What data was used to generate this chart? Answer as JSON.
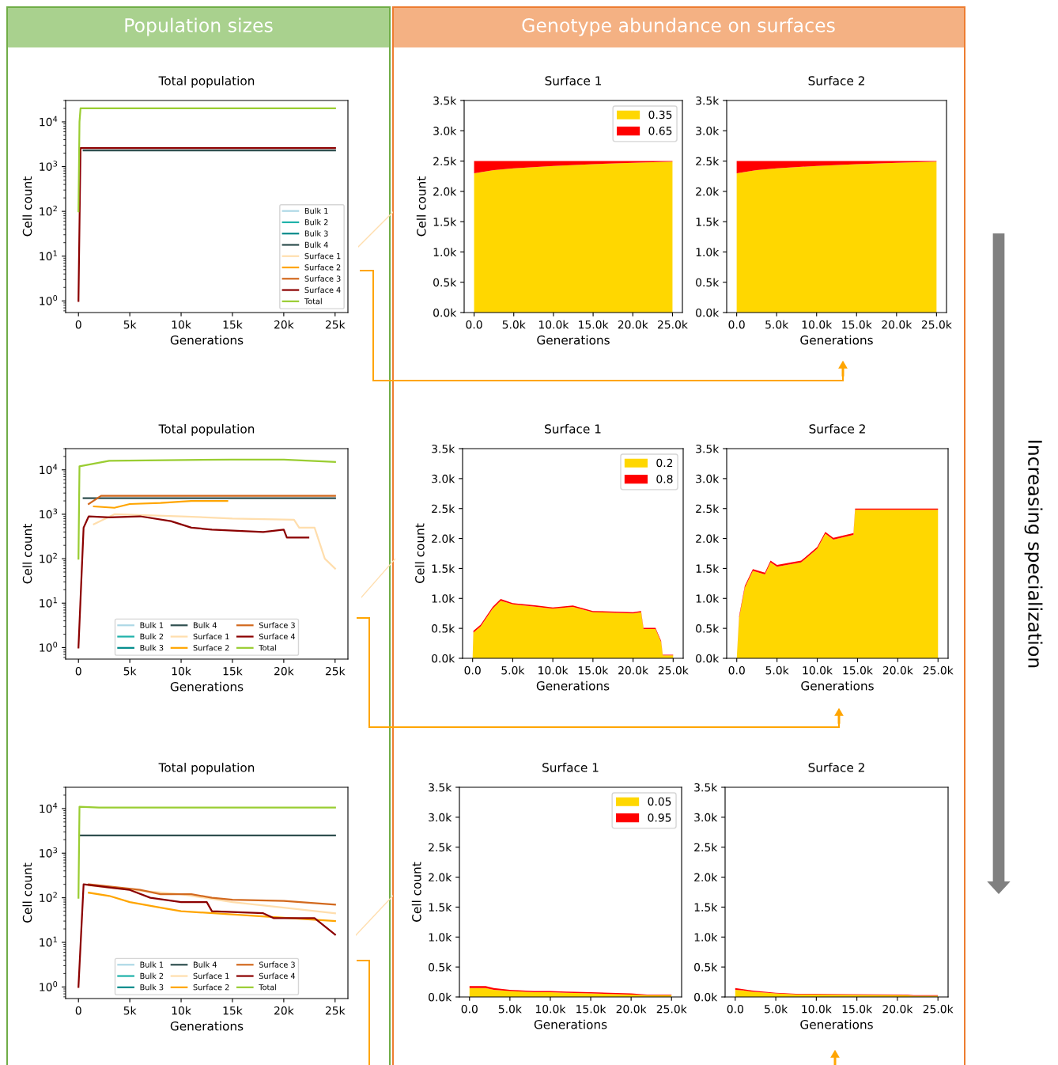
{
  "chart_data": [
    {
      "type": "line",
      "title": "Total population",
      "xlabel": "Generations",
      "ylabel": "Cell count",
      "log": "y",
      "legend": "bottom right",
      "annotations": [
        "Population sizes"
      ],
      "xlim": [
        -1250,
        26250
      ],
      "xticks": [
        0,
        {
          "value": 5000,
          "label": "5k"
        },
        {
          "value": 10000,
          "label": "10k"
        },
        {
          "value": 15000,
          "label": "15k"
        },
        {
          "value": 20000,
          "label": "20k"
        },
        {
          "value": 25000,
          "label": "25k"
        }
      ],
      "ylim": [
        0.55,
        30000
      ],
      "yticks": [
        {
          "value": 1,
          "label": "10$^{0}$"
        },
        {
          "value": 10,
          "label": "10$^{1}$"
        },
        {
          "value": 100,
          "label": "10$^{2}$"
        },
        {
          "value": 1000,
          "label": "10$^{3}$"
        },
        {
          "value": 10000,
          "label": "10$^{4}$"
        }
      ],
      "series": [
        {
          "name": "Bulk 1",
          "color": "#add8e6"
        },
        {
          "name": "Bulk 2",
          "color": "#20b2aa"
        },
        {
          "name": "Bulk 3",
          "color": "#008b8b"
        },
        {
          "name": "Bulk 4",
          "color": "#2f4f4f",
          "x": [
            500,
            25000
          ],
          "values": [
            2300,
            2300
          ]
        },
        {
          "name": "Surface 1",
          "color": "#ffdead"
        },
        {
          "name": "Surface 2",
          "color": "#ffa500"
        },
        {
          "name": "Surface 3",
          "color": "#d2691e"
        },
        {
          "name": "Surface 4",
          "color": "#8b0000",
          "x": [
            0,
            200,
            25000
          ],
          "values": [
            1,
            2600,
            2600
          ]
        },
        {
          "name": "Total",
          "color": "#9acd32",
          "x": [
            0,
            100,
            200,
            25000
          ],
          "values": [
            100,
            10000,
            20000,
            20000
          ]
        }
      ]
    },
    {
      "type": "area",
      "stacked": true,
      "title": "Surface 1",
      "xlabel": "Generations",
      "ylabel": "Cell count",
      "legend": "top right",
      "annotations": [
        "Genotype abundance on surfaces"
      ],
      "xlim": [
        -1250,
        26250
      ],
      "xticks": [
        {
          "value": 0,
          "label": "0.0"
        },
        {
          "value": 5000,
          "label": "5.0k"
        },
        {
          "value": 10000,
          "label": "10.0k"
        },
        {
          "value": 15000,
          "label": "15.0k"
        },
        {
          "value": 20000,
          "label": "20.0k"
        },
        {
          "value": 25000,
          "label": "25.0k"
        }
      ],
      "ylim": [
        0,
        3500
      ],
      "yticks": [
        {
          "value": 0,
          "label": "0.0k"
        },
        {
          "value": 500,
          "label": "0.5k"
        },
        {
          "value": 1000,
          "label": "1.0k"
        },
        {
          "value": 1500,
          "label": "1.5k"
        },
        {
          "value": 2000,
          "label": "2.0k"
        },
        {
          "value": 2500,
          "label": "2.5k"
        },
        {
          "value": 3000,
          "label": "3.0k"
        },
        {
          "value": 3500,
          "label": "3.5k"
        }
      ],
      "x": [
        0,
        2500,
        5000,
        10000,
        15000,
        20000,
        25000
      ],
      "series": [
        {
          "name": "0.35",
          "color": "#ffd700",
          "values": [
            2300,
            2350,
            2380,
            2420,
            2450,
            2470,
            2490
          ]
        },
        {
          "name": "0.65",
          "color": "#ff0000",
          "values": [
            200,
            150,
            120,
            80,
            50,
            30,
            10
          ]
        }
      ]
    },
    {
      "type": "area",
      "stacked": true,
      "title": "Surface 2",
      "xlabel": "Generations",
      "annotations": [
        "Increasing specialization"
      ],
      "xlim": [
        -1250,
        26250
      ],
      "xticks": [
        {
          "value": 0,
          "label": "0.0"
        },
        {
          "value": 5000,
          "label": "5.0k"
        },
        {
          "value": 10000,
          "label": "10.0k"
        },
        {
          "value": 15000,
          "label": "15.0k"
        },
        {
          "value": 20000,
          "label": "20.0k"
        },
        {
          "value": 25000,
          "label": "25.0k"
        }
      ],
      "ylim": [
        0,
        3500
      ],
      "yticks": [
        {
          "value": 0,
          "label": "0.0k"
        },
        {
          "value": 500,
          "label": "0.5k"
        },
        {
          "value": 1000,
          "label": "1.0k"
        },
        {
          "value": 1500,
          "label": "1.5k"
        },
        {
          "value": 2000,
          "label": "2.0k"
        },
        {
          "value": 2500,
          "label": "2.5k"
        },
        {
          "value": 3000,
          "label": "3.0k"
        },
        {
          "value": 3500,
          "label": "3.5k"
        }
      ],
      "x": [
        0,
        2500,
        5000,
        10000,
        15000,
        20000,
        25000
      ],
      "series": [
        {
          "color": "#ffd700",
          "values": [
            2300,
            2350,
            2380,
            2420,
            2450,
            2470,
            2490
          ]
        },
        {
          "color": "#ff0000",
          "values": [
            200,
            150,
            120,
            80,
            50,
            30,
            10
          ]
        }
      ]
    },
    {
      "type": "line",
      "title": "Total population",
      "xlabel": "Generations",
      "ylabel": "Cell count",
      "log": "y",
      "legend": "bottom",
      "xlim": [
        -1250,
        26250
      ],
      "xticks": [
        0,
        {
          "value": 5000,
          "label": "5k"
        },
        {
          "value": 10000,
          "label": "10k"
        },
        {
          "value": 15000,
          "label": "15k"
        },
        {
          "value": 20000,
          "label": "20k"
        },
        {
          "value": 25000,
          "label": "25k"
        }
      ],
      "ylim": [
        0.55,
        30000
      ],
      "yticks": [
        {
          "value": 1,
          "label": "10$^{0}$"
        },
        {
          "value": 10,
          "label": "10$^{1}$"
        },
        {
          "value": 100,
          "label": "10$^{2}$"
        },
        {
          "value": 1000,
          "label": "10$^{3}$"
        },
        {
          "value": 10000,
          "label": "10$^{4}$"
        }
      ],
      "series": [
        {
          "name": "Bulk 1",
          "color": "#add8e6"
        },
        {
          "name": "Bulk 2",
          "color": "#20b2aa"
        },
        {
          "name": "Bulk 3",
          "color": "#008b8b"
        },
        {
          "name": "Bulk 4",
          "color": "#2f4f4f",
          "x": [
            500,
            25000
          ],
          "values": [
            2300,
            2300
          ]
        },
        {
          "name": "Surface 1",
          "color": "#ffdead",
          "x": [
            1500,
            3500,
            10000,
            15000,
            21000,
            21500,
            23000,
            24000,
            25000
          ],
          "values": [
            600,
            1000,
            900,
            800,
            750,
            500,
            500,
            100,
            60
          ]
        },
        {
          "name": "Surface 2",
          "color": "#ffa500",
          "x": [
            1500,
            3500,
            5000,
            8000,
            11000,
            14500
          ],
          "values": [
            1500,
            1400,
            1700,
            1800,
            2000,
            2000
          ]
        },
        {
          "name": "Surface 3",
          "color": "#d2691e",
          "x": [
            1000,
            2200,
            25000
          ],
          "values": [
            1700,
            2600,
            2600
          ]
        },
        {
          "name": "Surface 4",
          "color": "#8b0000",
          "x": [
            0,
            500,
            1000,
            3000,
            6000,
            9000,
            11000,
            13000,
            18000,
            20000,
            20300,
            22400
          ],
          "values": [
            1,
            500,
            900,
            850,
            900,
            700,
            500,
            450,
            400,
            450,
            300,
            300
          ]
        },
        {
          "name": "Total",
          "color": "#9acd32",
          "x": [
            0,
            100,
            3000,
            15000,
            20000,
            25000
          ],
          "values": [
            100,
            12000,
            16000,
            17000,
            17000,
            15000
          ]
        }
      ]
    },
    {
      "type": "area",
      "stacked": true,
      "title": "Surface 1",
      "xlabel": "Generations",
      "ylabel": "Cell count",
      "legend": "top right",
      "xlim": [
        -1250,
        26250
      ],
      "xticks": [
        {
          "value": 0,
          "label": "0.0"
        },
        {
          "value": 5000,
          "label": "5.0k"
        },
        {
          "value": 10000,
          "label": "10.0k"
        },
        {
          "value": 15000,
          "label": "15.0k"
        },
        {
          "value": 20000,
          "label": "20.0k"
        },
        {
          "value": 25000,
          "label": "25.0k"
        }
      ],
      "ylim": [
        0,
        3500
      ],
      "yticks": [
        {
          "value": 0,
          "label": "0.0k"
        },
        {
          "value": 500,
          "label": "0.5k"
        },
        {
          "value": 1000,
          "label": "1.0k"
        },
        {
          "value": 1500,
          "label": "1.5k"
        },
        {
          "value": 2000,
          "label": "2.0k"
        },
        {
          "value": 2500,
          "label": "2.5k"
        },
        {
          "value": 3000,
          "label": "3.0k"
        },
        {
          "value": 3500,
          "label": "3.5k"
        }
      ],
      "x": [
        0,
        100,
        1000,
        2500,
        3500,
        5000,
        8000,
        10000,
        12500,
        15000,
        20000,
        21000,
        21300,
        22800,
        23500,
        23700,
        25000
      ],
      "series": [
        {
          "name": "0.2",
          "color": "#ffd700",
          "values": [
            0,
            430,
            530,
            830,
            960,
            900,
            860,
            830,
            860,
            770,
            750,
            770,
            490,
            490,
            270,
            50,
            50
          ]
        },
        {
          "name": "0.8",
          "color": "#ff0000",
          "values": [
            0,
            30,
            30,
            30,
            30,
            20,
            20,
            20,
            20,
            20,
            20,
            20,
            20,
            20,
            20,
            10,
            10
          ]
        }
      ]
    },
    {
      "type": "area",
      "stacked": true,
      "title": "Surface 2",
      "xlabel": "Generations",
      "xlim": [
        -1250,
        26250
      ],
      "xticks": [
        {
          "value": 0,
          "label": "0.0"
        },
        {
          "value": 5000,
          "label": "5.0k"
        },
        {
          "value": 10000,
          "label": "10.0k"
        },
        {
          "value": 15000,
          "label": "15.0k"
        },
        {
          "value": 20000,
          "label": "20.0k"
        },
        {
          "value": 25000,
          "label": "25.0k"
        }
      ],
      "ylim": [
        0,
        3500
      ],
      "yticks": [
        {
          "value": 0,
          "label": "0.0k"
        },
        {
          "value": 500,
          "label": "0.5k"
        },
        {
          "value": 1000,
          "label": "1.0k"
        },
        {
          "value": 1500,
          "label": "1.5k"
        },
        {
          "value": 2000,
          "label": "2.0k"
        },
        {
          "value": 2500,
          "label": "2.5k"
        },
        {
          "value": 3000,
          "label": "3.0k"
        },
        {
          "value": 3500,
          "label": "3.5k"
        }
      ],
      "x": [
        0,
        300,
        1000,
        2000,
        3500,
        4200,
        5000,
        8000,
        10000,
        11000,
        12000,
        14500,
        14700,
        25000
      ],
      "series": [
        {
          "color": "#ffd700",
          "values": [
            0,
            680,
            1180,
            1460,
            1400,
            1600,
            1530,
            1600,
            1830,
            2080,
            1980,
            2060,
            2480,
            2480
          ]
        },
        {
          "color": "#ff0000",
          "values": [
            0,
            30,
            30,
            30,
            30,
            30,
            30,
            30,
            30,
            30,
            30,
            30,
            20,
            20
          ]
        }
      ]
    },
    {
      "type": "line",
      "title": "Total population",
      "xlabel": "Generations",
      "ylabel": "Cell count",
      "log": "y",
      "legend": "bottom",
      "xlim": [
        -1250,
        26250
      ],
      "xticks": [
        0,
        {
          "value": 5000,
          "label": "5k"
        },
        {
          "value": 10000,
          "label": "10k"
        },
        {
          "value": 15000,
          "label": "15k"
        },
        {
          "value": 20000,
          "label": "20k"
        },
        {
          "value": 25000,
          "label": "25k"
        }
      ],
      "ylim": [
        0.55,
        30000
      ],
      "yticks": [
        {
          "value": 1,
          "label": "10$^{0}$"
        },
        {
          "value": 10,
          "label": "10$^{1}$"
        },
        {
          "value": 100,
          "label": "10$^{2}$"
        },
        {
          "value": 1000,
          "label": "10$^{3}$"
        },
        {
          "value": 10000,
          "label": "10$^{4}$"
        }
      ],
      "series": [
        {
          "name": "Bulk 1",
          "color": "#add8e6"
        },
        {
          "name": "Bulk 2",
          "color": "#20b2aa"
        },
        {
          "name": "Bulk 3",
          "color": "#008b8b"
        },
        {
          "name": "Bulk 4",
          "color": "#2f4f4f",
          "x": [
            200,
            25000
          ],
          "values": [
            2500,
            2500
          ]
        },
        {
          "name": "Surface 1",
          "color": "#ffdead",
          "x": [
            1000,
            5000,
            10000,
            15000,
            20000,
            25000
          ],
          "values": [
            190,
            150,
            120,
            80,
            60,
            45
          ]
        },
        {
          "name": "Surface 2",
          "color": "#ffa500",
          "x": [
            1000,
            3000,
            5000,
            8000,
            10000,
            25000
          ],
          "values": [
            130,
            110,
            80,
            60,
            50,
            30
          ]
        },
        {
          "name": "Surface 3",
          "color": "#d2691e",
          "x": [
            1000,
            3000,
            6000,
            8000,
            11000,
            13000,
            15000,
            20000,
            25000
          ],
          "values": [
            200,
            180,
            150,
            120,
            120,
            100,
            90,
            85,
            70
          ]
        },
        {
          "name": "Surface 4",
          "color": "#8b0000",
          "x": [
            0,
            500,
            3000,
            5000,
            7000,
            10000,
            12500,
            13000,
            18000,
            19000,
            23000,
            25000
          ],
          "values": [
            1,
            200,
            170,
            150,
            100,
            80,
            80,
            50,
            45,
            35,
            35,
            15
          ]
        },
        {
          "name": "Total",
          "color": "#9acd32",
          "x": [
            0,
            100,
            2000,
            25000
          ],
          "values": [
            100,
            11000,
            10500,
            10500
          ]
        }
      ]
    },
    {
      "type": "area",
      "stacked": true,
      "title": "Surface 1",
      "xlabel": "Generations",
      "ylabel": "Cell count",
      "legend": "top right",
      "xlim": [
        -1250,
        26250
      ],
      "xticks": [
        {
          "value": 0,
          "label": "0.0"
        },
        {
          "value": 5000,
          "label": "5.0k"
        },
        {
          "value": 10000,
          "label": "10.0k"
        },
        {
          "value": 15000,
          "label": "15.0k"
        },
        {
          "value": 20000,
          "label": "20.0k"
        },
        {
          "value": 25000,
          "label": "25.0k"
        }
      ],
      "ylim": [
        0,
        3500
      ],
      "yticks": [
        {
          "value": 0,
          "label": "0.0k"
        },
        {
          "value": 500,
          "label": "0.5k"
        },
        {
          "value": 1000,
          "label": "1.0k"
        },
        {
          "value": 1500,
          "label": "1.5k"
        },
        {
          "value": 2000,
          "label": "2.0k"
        },
        {
          "value": 2500,
          "label": "2.5k"
        },
        {
          "value": 3000,
          "label": "3.0k"
        },
        {
          "value": 3500,
          "label": "3.5k"
        }
      ],
      "x": [
        0,
        2000,
        3000,
        5000,
        8000,
        10000,
        12000,
        15000,
        20000,
        22000,
        25000
      ],
      "series": [
        {
          "name": "0.05",
          "color": "#ffd700",
          "values": [
            150,
            150,
            120,
            100,
            80,
            80,
            70,
            60,
            40,
            30,
            30
          ]
        },
        {
          "name": "0.95",
          "color": "#ff0000",
          "values": [
            30,
            30,
            30,
            20,
            20,
            20,
            20,
            20,
            20,
            10,
            10
          ]
        }
      ]
    },
    {
      "type": "area",
      "stacked": true,
      "title": "Surface 2",
      "xlabel": "Generations",
      "xlim": [
        -1250,
        26250
      ],
      "xticks": [
        {
          "value": 0,
          "label": "0.0"
        },
        {
          "value": 5000,
          "label": "5.0k"
        },
        {
          "value": 10000,
          "label": "10.0k"
        },
        {
          "value": 15000,
          "label": "15.0k"
        },
        {
          "value": 20000,
          "label": "20.0k"
        },
        {
          "value": 25000,
          "label": "25.0k"
        }
      ],
      "ylim": [
        0,
        3500
      ],
      "yticks": [
        {
          "value": 0,
          "label": "0.0k"
        },
        {
          "value": 500,
          "label": "0.5k"
        },
        {
          "value": 1000,
          "label": "1.0k"
        },
        {
          "value": 1500,
          "label": "1.5k"
        },
        {
          "value": 2000,
          "label": "2.0k"
        },
        {
          "value": 2500,
          "label": "2.5k"
        },
        {
          "value": 3000,
          "label": "3.0k"
        },
        {
          "value": 3500,
          "label": "3.5k"
        }
      ],
      "x": [
        0,
        1000,
        2000,
        5000,
        8000,
        10000,
        21000,
        22000,
        25000
      ],
      "series": [
        {
          "color": "#ffd700",
          "values": [
            120,
            110,
            90,
            60,
            40,
            40,
            30,
            20,
            20
          ]
        },
        {
          "color": "#ff0000",
          "values": [
            30,
            20,
            20,
            10,
            10,
            10,
            10,
            10,
            10
          ]
        }
      ]
    }
  ]
}
